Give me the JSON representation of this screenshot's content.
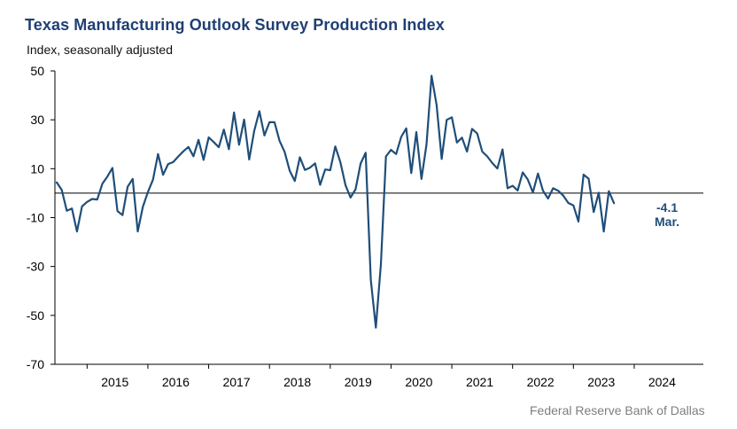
{
  "chart_data": {
    "type": "line",
    "title": "Texas Manufacturing Outlook Survey Production Index",
    "subtitle": "Index, seasonally adjusted",
    "source": "Federal Reserve Bank of Dallas",
    "ylim": [
      -70,
      50
    ],
    "yticks": [
      "50",
      "30",
      "10",
      "-10",
      "-30",
      "-50",
      "-70"
    ],
    "xtick_labels": [
      "2015",
      "2016",
      "2017",
      "2018",
      "2019",
      "2020",
      "2021",
      "2022",
      "2023",
      "2024"
    ],
    "x_start": "2014-07",
    "series": [
      {
        "name": "Production Index",
        "color": "#1f4e79",
        "values": [
          4.4,
          1.3,
          -7.2,
          -6.3,
          -15.7,
          -5.4,
          -3.6,
          -2.4,
          -2.6,
          3.8,
          6.8,
          10.3,
          -7.3,
          -9.0,
          2.6,
          5.8,
          -15.7,
          -5.7,
          0.4,
          5.5,
          16.0,
          7.5,
          11.9,
          12.7,
          15.0,
          17.1,
          18.9,
          15.1,
          21.8,
          13.6,
          22.8,
          20.9,
          18.8,
          26.0,
          18.0,
          33.0,
          19.8,
          30.1,
          13.8,
          25.5,
          33.5,
          23.6,
          29.0,
          29.0,
          21.4,
          16.9,
          9.1,
          5.0,
          14.7,
          9.5,
          10.4,
          12.2,
          3.4,
          9.7,
          9.4,
          19.1,
          12.6,
          3.3,
          -1.8,
          1.6,
          12.1,
          16.5,
          -35.5,
          -55.0,
          -29.0,
          15.0,
          17.7,
          16.0,
          23.0,
          26.5,
          8.2,
          25.0,
          5.8,
          20.0,
          48.0,
          36.0,
          14.0,
          30.0,
          31.0,
          20.7,
          22.7,
          17.0,
          26.3,
          24.4,
          17.0,
          15.0,
          12.3,
          10.1,
          17.9,
          2.0,
          3.0,
          1.1,
          8.5,
          5.6,
          0.3,
          8.0,
          1.0,
          -2.2,
          2.0,
          1.0,
          -1.0,
          -4.0,
          -5.0,
          -11.6,
          7.6,
          5.9,
          -7.7,
          0.2,
          -15.7,
          0.8,
          -4.1
        ]
      }
    ],
    "annotation": {
      "value": "-4.1",
      "label": "Mar."
    }
  }
}
